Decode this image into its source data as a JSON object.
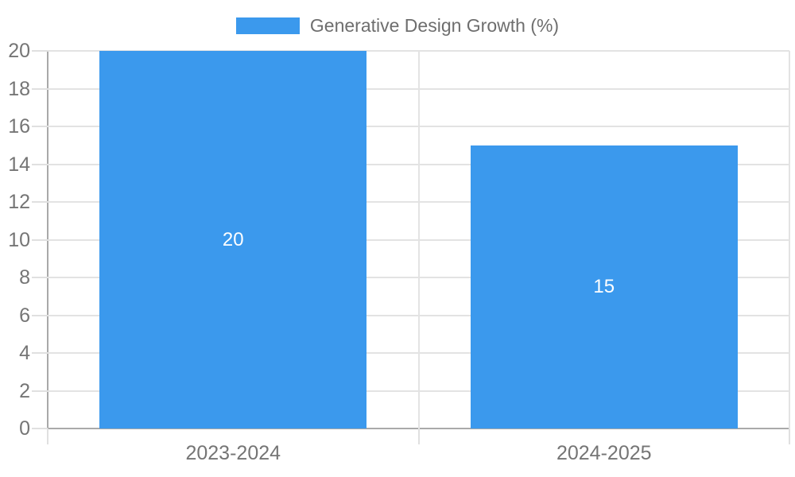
{
  "legend": {
    "label": "Generative Design Growth (%)"
  },
  "colors": {
    "bar": "#3b99ed",
    "gridline": "#e3e3e3",
    "axis_line": "#a9a9a9",
    "tick_text": "#757575",
    "legend_text": "#6e6e6e",
    "value_label_text": "#ffffff",
    "background": "#ffffff"
  },
  "chart_data": {
    "type": "bar",
    "title": "",
    "xlabel": "",
    "ylabel": "",
    "categories": [
      "2023-2024",
      "2024-2025"
    ],
    "series": [
      {
        "name": "Generative Design Growth (%)",
        "values": [
          20,
          15
        ]
      }
    ],
    "value_labels": [
      "20",
      "15"
    ],
    "ylim": [
      0,
      20
    ],
    "ytick_step": 2,
    "ytick_labels": [
      "0",
      "2",
      "4",
      "6",
      "8",
      "10",
      "12",
      "14",
      "16",
      "18",
      "20"
    ],
    "grid": true,
    "legend_position": "top-center",
    "bar_width_fraction": 0.72
  }
}
